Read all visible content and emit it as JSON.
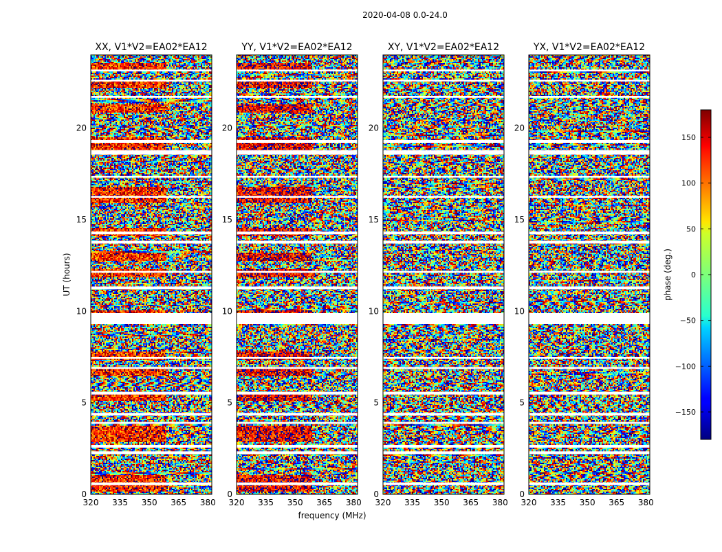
{
  "chart_data": {
    "type": "heatmap",
    "suptitle": "2020-04-08 0.0-24.0",
    "xlabel": "frequency (MHz)",
    "ylabel": "UT (hours)",
    "xlim": [
      320,
      382
    ],
    "ylim": [
      0,
      24
    ],
    "xticks": [
      "320",
      "335",
      "350",
      "365",
      "380"
    ],
    "yticks": [
      "0",
      "5",
      "10",
      "15",
      "20"
    ],
    "panels": [
      {
        "title": "XX, V1*V2=EA02*EA12",
        "polarization": "XX"
      },
      {
        "title": "YY, V1*V2=EA02*EA12",
        "polarization": "YY"
      },
      {
        "title": "XY, V1*V2=EA02*EA12",
        "polarization": "XY"
      },
      {
        "title": "YX, V1*V2=EA02*EA12",
        "polarization": "YX"
      }
    ],
    "colorbar": {
      "label": "phase (deg.)",
      "range": [
        -180,
        180
      ],
      "ticks": [
        "150",
        "100",
        "50",
        "0",
        "−50",
        "−100",
        "−150"
      ],
      "colormap": "jet"
    },
    "flagged_ut_bands": [
      [
        0.5,
        0.65
      ],
      [
        2.2,
        2.35
      ],
      [
        2.55,
        2.7
      ],
      [
        3.85,
        3.95
      ],
      [
        4.3,
        4.45
      ],
      [
        5.45,
        5.6
      ],
      [
        6.85,
        6.95
      ],
      [
        7.4,
        7.5
      ],
      [
        9.3,
        9.9
      ],
      [
        11.2,
        11.35
      ],
      [
        12.1,
        12.2
      ],
      [
        13.7,
        13.85
      ],
      [
        14.2,
        14.35
      ],
      [
        16.2,
        16.3
      ],
      [
        17.3,
        17.4
      ],
      [
        18.55,
        18.8
      ],
      [
        19.2,
        19.35
      ],
      [
        21.65,
        21.75
      ],
      [
        22.55,
        22.65
      ],
      [
        23.1,
        23.2
      ]
    ]
  }
}
